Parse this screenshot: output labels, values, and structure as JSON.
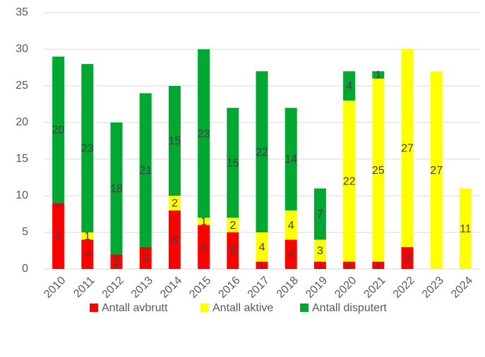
{
  "chart_data": {
    "type": "stacked_bar",
    "categories": [
      "2010",
      "2011",
      "2012",
      "2013",
      "2014",
      "2015",
      "2016",
      "2017",
      "2018",
      "2019",
      "2020",
      "2021",
      "2022",
      "2023",
      "2024"
    ],
    "series": [
      {
        "name": "Antall avbrutt",
        "color": "#ff0000",
        "values": [
          9,
          4,
          2,
          3,
          8,
          6,
          5,
          1,
          4,
          1,
          1,
          1,
          3,
          null,
          null
        ]
      },
      {
        "name": "Antall aktive",
        "color": "#ffff00",
        "values": [
          0,
          1,
          0,
          0,
          2,
          1,
          2,
          4,
          4,
          3,
          22,
          25,
          27,
          27,
          11
        ]
      },
      {
        "name": "Antall disputert",
        "color": "#00a832",
        "values": [
          20,
          23,
          18,
          21,
          15,
          23,
          15,
          22,
          14,
          7,
          4,
          1,
          null,
          null,
          null
        ]
      }
    ],
    "ylim": [
      0,
      35
    ],
    "yticks": [
      0,
      5,
      10,
      15,
      20,
      25,
      30,
      35
    ],
    "grid": true,
    "legend": "bottom"
  }
}
